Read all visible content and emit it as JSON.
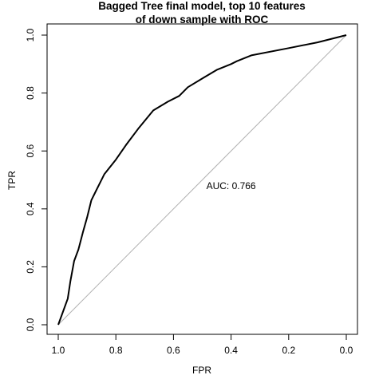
{
  "chart_data": {
    "type": "line",
    "title_lines": [
      "Bagged Tree final model, top 10 features",
      "of down sample with ROC"
    ],
    "xlabel": "FPR",
    "ylabel": "TPR",
    "xlim": [
      1.0,
      0.0
    ],
    "ylim": [
      0.0,
      1.0
    ],
    "x_ticks": [
      1.0,
      0.8,
      0.6,
      0.4,
      0.2,
      0.0
    ],
    "x_tick_labels": [
      "1.0",
      "0.8",
      "0.6",
      "0.4",
      "0.2",
      "0.0"
    ],
    "y_ticks": [
      0.0,
      0.2,
      0.4,
      0.6,
      0.8,
      1.0
    ],
    "y_tick_labels": [
      "0.0",
      "0.2",
      "0.4",
      "0.6",
      "0.8",
      "1.0"
    ],
    "grid": false,
    "legend": "none",
    "annotation": {
      "text": "AUC: 0.766",
      "x": 0.4,
      "y": 0.48
    },
    "series": [
      {
        "color": "#000000",
        "x": [
          1.0,
          0.967,
          0.958,
          0.945,
          0.93,
          0.914,
          0.9,
          0.885,
          0.87,
          0.84,
          0.8,
          0.765,
          0.72,
          0.67,
          0.62,
          0.58,
          0.55,
          0.5,
          0.45,
          0.4,
          0.38,
          0.33,
          0.2,
          0.1,
          0.0
        ],
        "y": [
          0.0,
          0.09,
          0.15,
          0.22,
          0.26,
          0.32,
          0.37,
          0.43,
          0.46,
          0.52,
          0.57,
          0.62,
          0.68,
          0.74,
          0.77,
          0.79,
          0.82,
          0.85,
          0.88,
          0.9,
          0.91,
          0.93,
          0.955,
          0.975,
          1.0
        ]
      },
      {
        "color": "#b0b0b0",
        "x": [
          1.0,
          0.0
        ],
        "y": [
          0.0,
          1.0
        ]
      }
    ]
  }
}
